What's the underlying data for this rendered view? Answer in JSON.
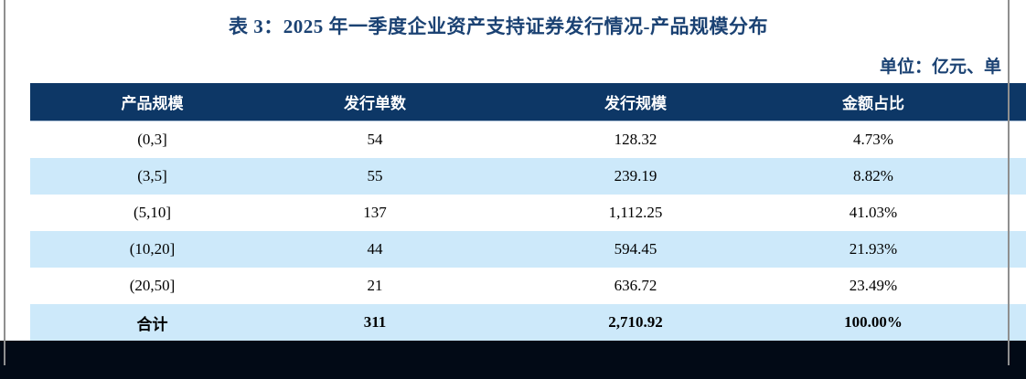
{
  "title": "表 3：2025 年一季度企业资产支持证券发行情况-产品规模分布",
  "unit_label": "单位：亿元、单",
  "table": {
    "columns": [
      "产品规模",
      "发行单数",
      "发行规模",
      "金额占比"
    ],
    "rows": [
      {
        "cells": [
          "(0,3]",
          "54",
          "128.32",
          "4.73%"
        ],
        "total": false
      },
      {
        "cells": [
          "(3,5]",
          "55",
          "239.19",
          "8.82%"
        ],
        "total": false
      },
      {
        "cells": [
          "(5,10]",
          "137",
          "1,112.25",
          "41.03%"
        ],
        "total": false
      },
      {
        "cells": [
          "(10,20]",
          "44",
          "594.45",
          "21.93%"
        ],
        "total": false
      },
      {
        "cells": [
          "(20,50]",
          "21",
          "636.72",
          "23.49%"
        ],
        "total": false
      },
      {
        "cells": [
          "合计",
          "311",
          "2,710.92",
          "100.00%"
        ],
        "total": true
      }
    ]
  },
  "colors": {
    "header_bg": "#0d3766",
    "row_alt_bg": "#cde9fa",
    "title_text": "#1b4273",
    "body_text": "#000000",
    "bottom_bar": "#020a16",
    "page_edge_gray": "#8f8f8f",
    "table_bottom_border": "#8a8a8a"
  }
}
